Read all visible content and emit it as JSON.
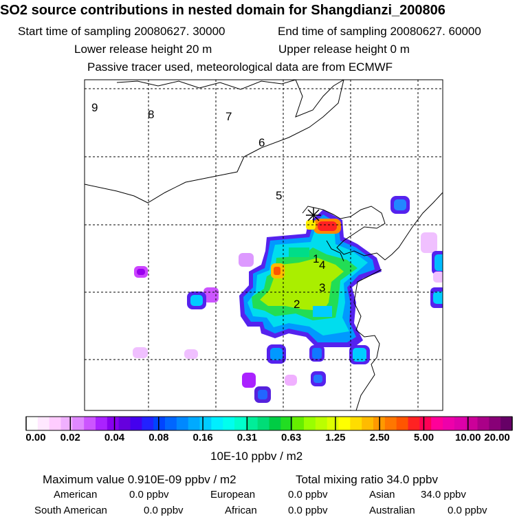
{
  "header": {
    "title": "SO2 source contributions in nested domain for Shangdianzi_200806",
    "start_label": "Start time of sampling 20080627. 30000",
    "end_label": "End time of sampling 20080627. 60000",
    "lower_label": "Lower release height   20 m",
    "upper_label": "Upper release height    0 m",
    "tracer_note": "Passive tracer used, meteorological data are from ECMWF"
  },
  "map": {
    "region_labels": [
      "1",
      "2",
      "3",
      "4",
      "5",
      "6",
      "7",
      "8",
      "9"
    ],
    "receptor_marker": "star-marker"
  },
  "colorbar": {
    "ticks": [
      "0.00",
      "0.02",
      "0.04",
      "0.08",
      "0.16",
      "0.31",
      "0.63",
      "1.25",
      "2.50",
      "5.00",
      "10.00",
      "20.00"
    ],
    "unit": "10E-10 ppbv / m2",
    "colors": [
      "#ffffff",
      "#ffe8ff",
      "#ffccff",
      "#f0b0ff",
      "#e088ff",
      "#cc55ff",
      "#aa22ff",
      "#8800ee",
      "#6600dd",
      "#4400ee",
      "#2222ff",
      "#0044ff",
      "#0066ff",
      "#0088ff",
      "#00aaff",
      "#00ccff",
      "#00eeff",
      "#00ffee",
      "#00ffcc",
      "#00ee99",
      "#00dd77",
      "#00cc44",
      "#22dd22",
      "#66ee00",
      "#99ff00",
      "#bbff00",
      "#ddff00",
      "#ffff00",
      "#ffdd00",
      "#ffbb00",
      "#ff9900",
      "#ff7700",
      "#ff5500",
      "#ff2222",
      "#ff0055",
      "#ff0099",
      "#ee00aa",
      "#dd00aa",
      "#cc0099",
      "#aa0088",
      "#880077",
      "#660066"
    ]
  },
  "stats": {
    "max_value": "Maximum value  0.910E-09 ppbv / m2",
    "total_mixing": "Total mixing ratio      34.0 ppbv",
    "american": "American",
    "american_value": "0.0 ppbv",
    "european": "European",
    "european_value": "0.0 ppbv",
    "asian": "Asian",
    "asian_value": "34.0 ppbv",
    "south_american": "South American",
    "south_american_value": "0.0 ppbv",
    "african": "African",
    "african_value": "0.0 ppbv",
    "australian": "Australian",
    "australian_value": "0.0 ppbv"
  }
}
